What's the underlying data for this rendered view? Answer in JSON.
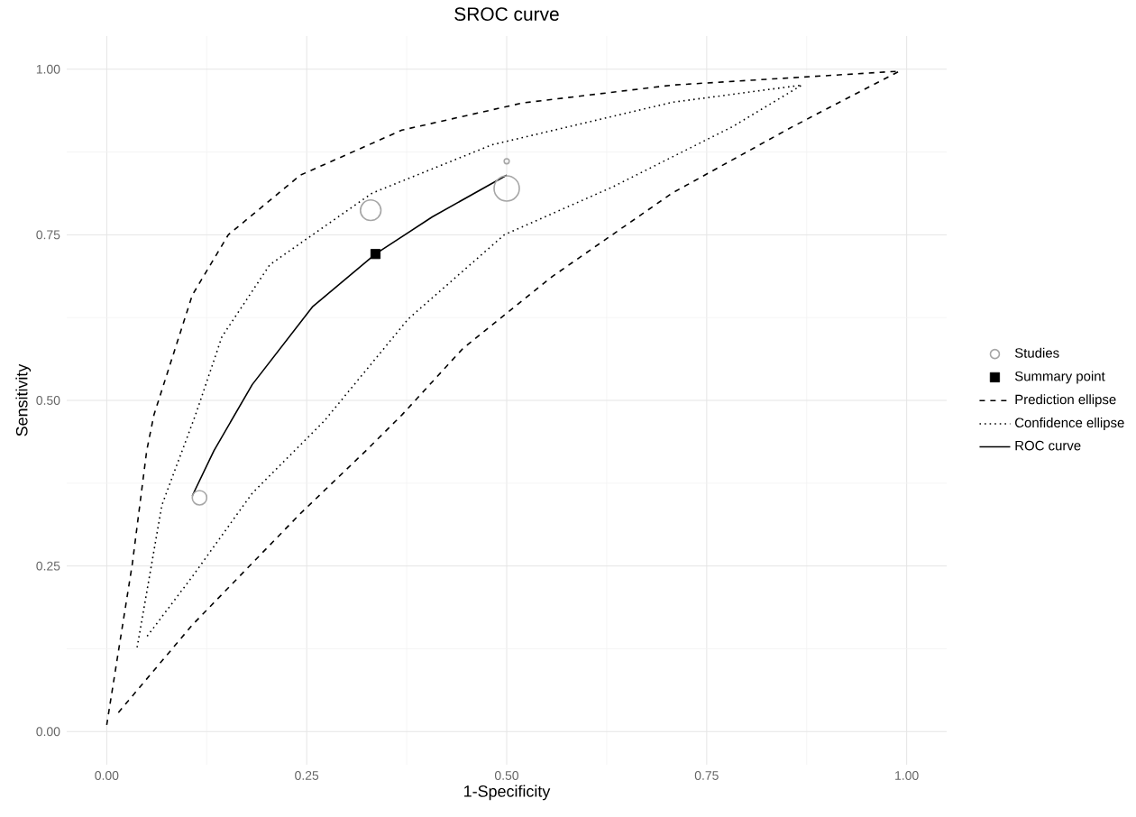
{
  "chart_data": {
    "type": "line",
    "title": "SROC curve",
    "xlabel": "1-Specificity",
    "ylabel": "Sensitivity",
    "xlim": [
      -0.05,
      1.05
    ],
    "ylim": [
      -0.05,
      1.05
    ],
    "xticks": [
      {
        "value": 0,
        "label": "0.00"
      },
      {
        "value": 0.25,
        "label": "0.25"
      },
      {
        "value": 0.5,
        "label": "0.50"
      },
      {
        "value": 0.75,
        "label": "0.75"
      },
      {
        "value": 1,
        "label": "1.00"
      }
    ],
    "yticks": [
      {
        "value": 0,
        "label": "0.00"
      },
      {
        "value": 0.25,
        "label": "0.25"
      },
      {
        "value": 0.5,
        "label": "0.50"
      },
      {
        "value": 0.75,
        "label": "0.75"
      },
      {
        "value": 1,
        "label": "1.00"
      }
    ],
    "grid": true,
    "legend": "right",
    "series": [
      {
        "name": "Studies",
        "type": "bubble",
        "marker": "circle",
        "color": "#a6a6a6",
        "x": [
          0.116,
          0.33,
          0.5,
          0.5
        ],
        "values": [
          0.353,
          0.787,
          0.82,
          0.861
        ],
        "sizes": [
          0.33,
          0.66,
          1,
          0.04
        ]
      },
      {
        "name": "Summary point",
        "type": "scatter",
        "marker": "square",
        "color": "#000000",
        "x": [
          0.336
        ],
        "values": [
          0.721
        ]
      },
      {
        "name": "Prediction ellipse",
        "type": "line",
        "line_style": "dashed",
        "color": "#000000",
        "x": [
          0.0,
          0.032,
          0.05,
          0.059,
          0.107,
          0.152,
          0.242,
          0.369,
          0.52,
          0.707,
          0.991,
          0.857,
          0.707,
          0.557,
          0.445,
          0.369,
          0.324,
          0.242,
          0.107,
          0.012
        ],
        "values": [
          0.01,
          0.253,
          0.424,
          0.478,
          0.659,
          0.75,
          0.84,
          0.908,
          0.949,
          0.976,
          0.997,
          0.913,
          0.813,
          0.687,
          0.578,
          0.478,
          0.424,
          0.329,
          0.161,
          0.025
        ]
      },
      {
        "name": "Confidence ellipse",
        "type": "line",
        "line_style": "dotted",
        "color": "#000000",
        "x": [
          0.038,
          0.069,
          0.111,
          0.144,
          0.204,
          0.332,
          0.482,
          0.707,
          0.869,
          0.782,
          0.632,
          0.497,
          0.377,
          0.272,
          0.182,
          0.107,
          0.05
        ],
        "values": [
          0.127,
          0.342,
          0.478,
          0.596,
          0.705,
          0.813,
          0.886,
          0.95,
          0.976,
          0.913,
          0.822,
          0.75,
          0.623,
          0.469,
          0.36,
          0.234,
          0.143
        ]
      },
      {
        "name": "ROC curve",
        "type": "line",
        "line_style": "solid",
        "color": "#000000",
        "x": [
          0.107,
          0.134,
          0.182,
          0.257,
          0.336,
          0.407,
          0.5
        ],
        "values": [
          0.356,
          0.424,
          0.524,
          0.641,
          0.721,
          0.777,
          0.84
        ]
      }
    ]
  }
}
